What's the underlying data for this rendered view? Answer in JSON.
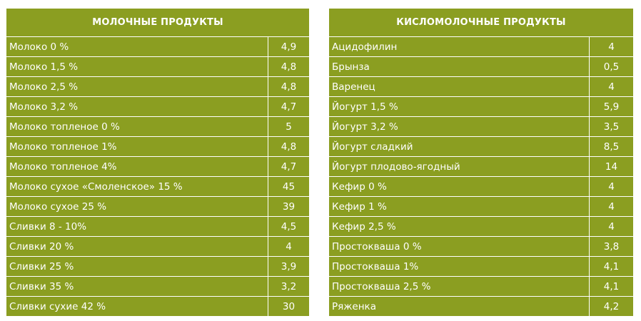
{
  "dairy": {
    "title": "МОЛОЧНЫЕ ПРОДУКТЫ",
    "rows": [
      {
        "name": "Молоко 0 %",
        "value": "4,9"
      },
      {
        "name": "Молоко 1,5 %",
        "value": "4,8"
      },
      {
        "name": "Молоко 2,5 %",
        "value": "4,8"
      },
      {
        "name": "Молоко 3,2 %",
        "value": "4,7"
      },
      {
        "name": "Молоко топленое 0 %",
        "value": "5"
      },
      {
        "name": "Молоко топленое 1%",
        "value": "4,8"
      },
      {
        "name": "Молоко топленое 4%",
        "value": "4,7"
      },
      {
        "name": "Молоко сухое «Смоленское» 15 %",
        "value": "45"
      },
      {
        "name": "Молоко сухое 25 %",
        "value": "39"
      },
      {
        "name": "Сливки 8 - 10%",
        "value": "4,5"
      },
      {
        "name": "Сливки 20 %",
        "value": "4"
      },
      {
        "name": "Сливки 25 %",
        "value": "3,9"
      },
      {
        "name": "Сливки 35 %",
        "value": "3,2"
      },
      {
        "name": "Сливки сухие 42 %",
        "value": "30"
      }
    ]
  },
  "fermented": {
    "title": "КИСЛОМОЛОЧНЫЕ ПРОДУКТЫ",
    "rows": [
      {
        "name": "Ацидофилин",
        "value": "4"
      },
      {
        "name": "Брынза",
        "value": "0,5"
      },
      {
        "name": "Варенец",
        "value": "4"
      },
      {
        "name": "Йогурт 1,5 %",
        "value": "5,9"
      },
      {
        "name": "Йогурт 3,2 %",
        "value": "3,5"
      },
      {
        "name": "Йогурт сладкий",
        "value": "8,5"
      },
      {
        "name": "Йогурт плодово-ягодный",
        "value": "14"
      },
      {
        "name": "Кефир 0 %",
        "value": "4"
      },
      {
        "name": "Кефир 1 %",
        "value": "4"
      },
      {
        "name": "Кефир 2,5 %",
        "value": "4"
      },
      {
        "name": "Простокваша 0 %",
        "value": "3,8"
      },
      {
        "name": "Простокваша 1%",
        "value": "4,1"
      },
      {
        "name": "Простокваша 2,5 %",
        "value": "4,1"
      },
      {
        "name": "Ряженка",
        "value": "4,2"
      }
    ]
  }
}
